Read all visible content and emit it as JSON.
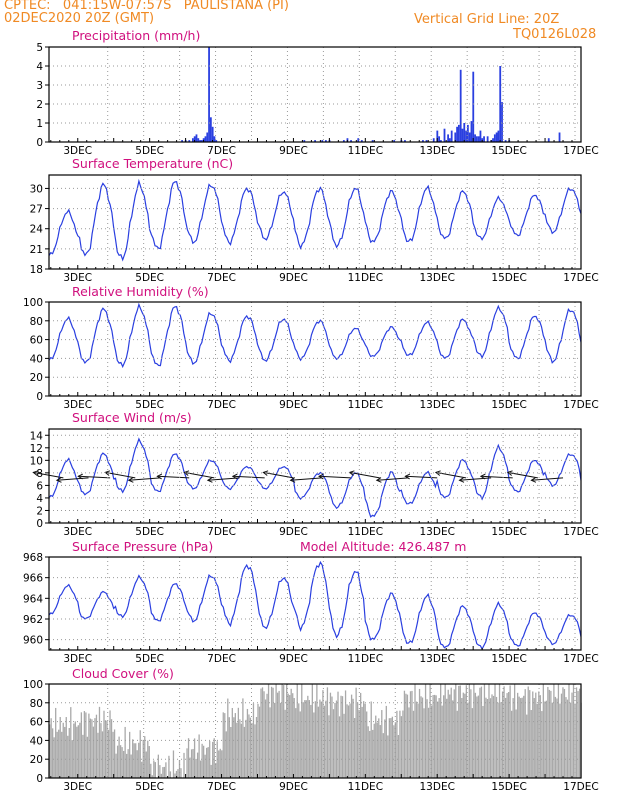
{
  "header": {
    "left_line1": "CPTEC:   041:15W-07:57S   PAULISTANA (PI)",
    "left_line2": "02DEC2020 20Z (GMT)",
    "right_line1": "Vertical Grid Line: 20Z",
    "right_line2": "TQ0126L028"
  },
  "colors": {
    "header": "#f08a24",
    "title": "#d0107e",
    "series": "#2a3fe0",
    "cloud": "#a9a9a9",
    "grid": "#9a9a9a"
  },
  "x_axis": {
    "ticks": [
      "3DEC",
      "5DEC",
      "7DEC",
      "9DEC",
      "11DEC",
      "13DEC",
      "15DEC",
      "17DEC"
    ],
    "tick_days": [
      3,
      5,
      7,
      9,
      11,
      13,
      15,
      17
    ],
    "range_days": [
      2.2,
      17
    ]
  },
  "chart_data": [
    {
      "type": "bar",
      "title": "Precipitation (mm/h)",
      "ylim": [
        0,
        5
      ],
      "yticks": [
        0,
        1,
        2,
        3,
        4,
        5
      ],
      "x": [
        5.9,
        6.0,
        6.1,
        6.2,
        6.25,
        6.3,
        6.35,
        6.4,
        6.45,
        6.5,
        6.55,
        6.6,
        6.65,
        6.7,
        6.75,
        6.8,
        6.85,
        9.3,
        9.6,
        9.8,
        9.9,
        10.0,
        10.4,
        10.5,
        10.6,
        10.8,
        10.9,
        11.2,
        11.8,
        12.0,
        12.1,
        12.6,
        12.7,
        12.9,
        13.0,
        13.05,
        13.1,
        13.2,
        13.3,
        13.35,
        13.4,
        13.5,
        13.55,
        13.6,
        13.65,
        13.7,
        13.75,
        13.8,
        13.85,
        13.9,
        13.95,
        14.0,
        14.05,
        14.1,
        14.15,
        14.2,
        14.25,
        14.3,
        14.4,
        14.5,
        14.55,
        14.6,
        14.65,
        14.7,
        14.75,
        14.8,
        14.9,
        15.0,
        16.1,
        16.4
      ],
      "values": [
        0.1,
        0.1,
        0.1,
        0.2,
        0.3,
        0.4,
        0.2,
        0.1,
        0.1,
        0.2,
        0.3,
        0.5,
        5.0,
        1.3,
        0.8,
        0.3,
        0.1,
        0.1,
        0.1,
        0.1,
        0.1,
        0.1,
        0.1,
        0.2,
        0.1,
        0.2,
        0.1,
        0.1,
        0.1,
        0.1,
        0.1,
        0.1,
        0.1,
        0.2,
        0.6,
        0.3,
        0.1,
        0.7,
        0.4,
        0.2,
        0.6,
        0.5,
        0.8,
        0.9,
        3.8,
        0.7,
        1.0,
        0.6,
        0.9,
        0.5,
        1.1,
        3.7,
        0.4,
        0.3,
        0.3,
        0.6,
        0.2,
        0.3,
        0.3,
        0.1,
        0.2,
        0.4,
        0.5,
        0.6,
        4.0,
        2.1,
        0.1,
        0.1,
        0.2,
        0.5
      ]
    },
    {
      "type": "line",
      "title": "Surface Temperature (nC)",
      "ylim": [
        18,
        32
      ],
      "yticks": [
        18,
        21,
        24,
        27,
        30
      ],
      "max": [
        26.5,
        30.5,
        30.5,
        31.0,
        30.5,
        30.0,
        29.5,
        30.0,
        30.0,
        29.5,
        30.0,
        29.5,
        28.5,
        29.0,
        30.0,
        31.0
      ],
      "min": [
        20.0,
        20.0,
        19.5,
        21.0,
        22.0,
        22.0,
        22.5,
        21.5,
        21.5,
        22.0,
        22.0,
        22.5,
        22.5,
        23.0,
        23.5,
        23.5
      ]
    },
    {
      "type": "line",
      "title": "Relative Humidity (%)",
      "ylim": [
        0,
        100
      ],
      "yticks": [
        0,
        20,
        40,
        60,
        80,
        100
      ],
      "max": [
        82,
        92,
        94,
        95,
        88,
        85,
        82,
        80,
        72,
        73,
        78,
        81,
        93,
        85,
        92,
        95
      ],
      "min": [
        38,
        35,
        32,
        32,
        35,
        38,
        38,
        40,
        40,
        42,
        43,
        40,
        42,
        40,
        37,
        35
      ]
    },
    {
      "type": "line",
      "title": "Surface Wind (m/s)",
      "ylim": [
        0,
        15
      ],
      "yticks": [
        0,
        2,
        4,
        6,
        8,
        10,
        12,
        14
      ],
      "max": [
        10.0,
        11.0,
        13.0,
        11.0,
        10.0,
        9.0,
        9.0,
        8.0,
        8.0,
        8.0,
        8.0,
        10.0,
        12.0,
        10.0,
        11.0,
        9.0
      ],
      "min": [
        4.0,
        4.5,
        5.0,
        5.0,
        5.5,
        5.5,
        5.5,
        4.0,
        2.5,
        1.0,
        3.0,
        4.0,
        4.0,
        5.0,
        6.0,
        5.5
      ],
      "arrows_days": [
        2.6,
        3.3,
        3.9,
        4.6,
        5.3,
        6.1,
        6.8,
        7.5,
        8.2,
        9.0,
        9.8,
        10.6,
        11.4,
        12.2,
        13.0,
        13.8,
        14.5,
        15.1,
        15.8,
        16.5
      ]
    },
    {
      "type": "line",
      "title": "Surface Pressure (hPa)",
      "annotation": "Model Altitude: 426.487 m",
      "ylim": [
        959,
        968
      ],
      "yticks": [
        960,
        962,
        964,
        966,
        968
      ],
      "max": [
        965.2,
        964.6,
        966.0,
        965.4,
        966.2,
        967.2,
        966.0,
        967.4,
        966.6,
        964.4,
        964.2,
        963.2,
        963.4,
        962.6,
        962.4,
        961.8
      ],
      "min": [
        962.4,
        962.0,
        962.2,
        961.8,
        961.8,
        961.6,
        961.2,
        961.2,
        960.4,
        960.0,
        959.6,
        959.2,
        959.2,
        959.4,
        959.6,
        959.4
      ]
    },
    {
      "type": "bar",
      "title": "Cloud Cover (%)",
      "ylim": [
        0,
        100
      ],
      "yticks": [
        0,
        20,
        40,
        60,
        80,
        100
      ],
      "levels_by_day": [
        60,
        65,
        40,
        15,
        35,
        70,
        95,
        88,
        85,
        65,
        90,
        95,
        95,
        90,
        95,
        95
      ]
    }
  ]
}
